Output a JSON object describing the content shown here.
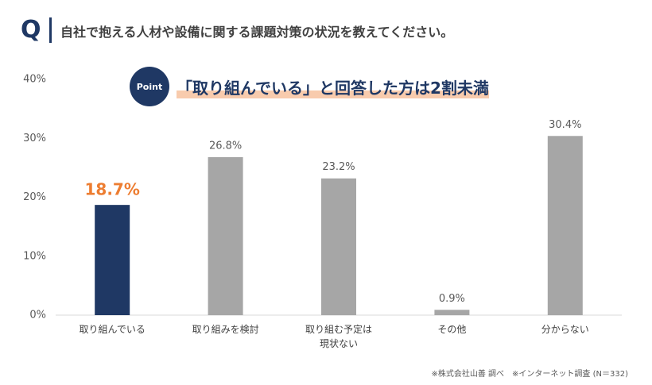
{
  "header": {
    "badge": "Q",
    "question": "自社で抱える人材や設備に関する課題対策の状況を教えてください。"
  },
  "callout": {
    "badge": "Point",
    "headline": "「取り組んでいる」と回答した方は2割未満"
  },
  "chart_data": {
    "type": "bar",
    "categories": [
      "取り組んでいる",
      "取り組みを検討",
      "取り組む予定は現状ない",
      "その他",
      "分からない"
    ],
    "values": [
      18.7,
      26.8,
      23.2,
      0.9,
      30.4
    ],
    "value_labels": [
      "18.7%",
      "26.8%",
      "23.2%",
      "0.9%",
      "30.4%"
    ],
    "color": "#a6a6a6",
    "highlight_index": 0,
    "highlight_color": "#1f3864",
    "highlight_label_color": "#ed7d31",
    "ylim": [
      0,
      40
    ],
    "yticks": [
      {
        "value": 0,
        "label": "0%"
      },
      {
        "value": 10,
        "label": "10%"
      },
      {
        "value": 20,
        "label": "20%"
      },
      {
        "value": 30,
        "label": "30%"
      },
      {
        "value": 40,
        "label": "40%"
      }
    ]
  },
  "footnote": "※株式会社山善 調べ　※インターネット調査 (N＝332)"
}
